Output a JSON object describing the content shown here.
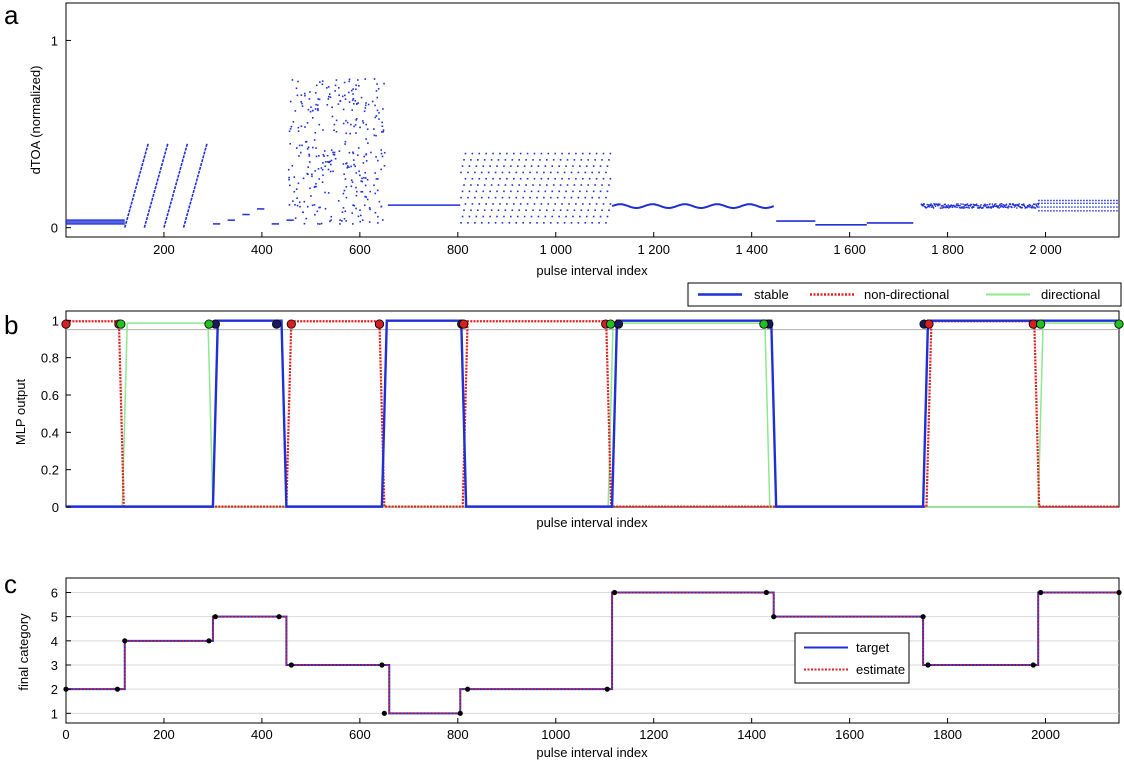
{
  "colors": {
    "blue": "#1f2fd6",
    "red": "#e02020",
    "green": "#8ee88e",
    "stable_dot": "#1a1a5a",
    "nondir_dot": "#d42020",
    "dir_dot": "#22c022",
    "grid": "#d9d9d9"
  },
  "chart_data": [
    {
      "panel": "a",
      "type": "scatter",
      "xlabel": "pulse interval index",
      "ylabel": "dTOA (normalized)",
      "xlim": [
        0,
        2150
      ],
      "ylim": [
        -0.05,
        1.2
      ],
      "xtick_values": [
        200,
        400,
        600,
        800,
        1000,
        1200,
        1400,
        1600,
        1800,
        2000
      ],
      "xtick_labels": [
        "200",
        "400",
        "600",
        "800",
        "1 000",
        "1 200",
        "1 400",
        "1 600",
        "1 800",
        "2 000"
      ],
      "ytick_values": [
        0,
        1
      ],
      "ytick_labels": [
        "0",
        "1"
      ],
      "segments": [
        {
          "kind": "lines",
          "x0": 0,
          "x1": 120,
          "levels": [
            0.02,
            0.03,
            0.04
          ]
        },
        {
          "kind": "ramps",
          "x_starts": [
            120,
            160,
            200,
            240
          ],
          "width": 48,
          "y0": 0.0,
          "y1": 0.45
        },
        {
          "kind": "dashes",
          "x0": 300,
          "x1": 455,
          "levels": [
            0.02,
            0.04,
            0.07,
            0.1
          ],
          "period": 30
        },
        {
          "kind": "scatter",
          "x0": 452,
          "x1": 650,
          "ymin": 0.02,
          "ymax": 0.8,
          "count": 330
        },
        {
          "kind": "lines",
          "x0": 657,
          "x1": 805,
          "levels": [
            0.12
          ]
        },
        {
          "kind": "dots",
          "x0": 805,
          "x1": 1115,
          "ymin": 0.03,
          "ymax": 0.4,
          "pattern": "zigzag"
        },
        {
          "kind": "wave",
          "x0": 1115,
          "x1": 1445,
          "center": 0.115,
          "amplitude": 0.01,
          "cycles": 5
        },
        {
          "kind": "steps",
          "x_bounds": [
            1450,
            1530,
            1635,
            1730
          ],
          "levels": [
            0.035,
            0.015,
            0.025
          ]
        },
        {
          "kind": "noise",
          "x0": 1745,
          "x1": 1985,
          "center": 0.12,
          "spread": 0.012
        },
        {
          "kind": "dotted-lines",
          "x0": 1985,
          "x1": 2150,
          "levels": [
            0.09,
            0.11,
            0.13,
            0.145
          ]
        }
      ]
    },
    {
      "panel": "b",
      "type": "line",
      "xlabel": "pulse interval index",
      "ylabel": "MLP output",
      "xlim": [
        0,
        2150
      ],
      "ylim": [
        0,
        1.05
      ],
      "ytick_values": [
        0,
        0.2,
        0.4,
        0.6,
        0.8,
        1
      ],
      "ytick_labels": [
        "0",
        "0.2",
        "0.4",
        "0.6",
        "0.8",
        "1"
      ],
      "threshold": 0.95,
      "legend": {
        "position": "top-right",
        "entries": [
          "stable",
          "non-directional",
          "directional"
        ]
      },
      "series": [
        {
          "name": "stable",
          "style": "solid",
          "high_intervals": [
            [
              305,
              445
            ],
            [
              650,
              812
            ],
            [
              1120,
              1445
            ],
            [
              1755,
              2150
            ]
          ]
        },
        {
          "name": "non-directional",
          "style": "dotted",
          "high_intervals": [
            [
              0,
              113
            ],
            [
              455,
              645
            ],
            [
              815,
              1108
            ],
            [
              1762,
              1982
            ]
          ]
        },
        {
          "name": "directional",
          "style": "solid-light",
          "high_intervals": [
            [
              120,
              295
            ],
            [
              1112,
              1432
            ],
            [
              1990,
              2150
            ]
          ]
        }
      ],
      "markers": {
        "stable": [
          305,
          430,
          640,
          808,
          1128,
          1435,
          1752
        ],
        "non-directional": [
          0,
          108,
          460,
          640,
          812,
          1102,
          1762,
          1975
        ],
        "directional": [
          112,
          292,
          1112,
          1425,
          1990,
          2150
        ]
      }
    },
    {
      "panel": "c",
      "type": "line",
      "xlabel": "pulse interval index",
      "ylabel": "final category",
      "xlim": [
        0,
        2150
      ],
      "ylim": [
        0.6,
        6.6
      ],
      "xtick_values": [
        0,
        200,
        400,
        600,
        800,
        1000,
        1200,
        1400,
        1600,
        1800,
        2000
      ],
      "xtick_labels": [
        "0",
        "200",
        "400",
        "600",
        "800",
        "1000",
        "1200",
        "1400",
        "1600",
        "1800",
        "2000"
      ],
      "ytick_values": [
        1,
        2,
        3,
        4,
        5,
        6
      ],
      "ytick_labels": [
        "1",
        "2",
        "3",
        "4",
        "5",
        "6"
      ],
      "legend": {
        "position": "right",
        "entries": [
          "target",
          "estimate"
        ]
      },
      "series": [
        {
          "name": "target",
          "steps": [
            [
              0,
              2
            ],
            [
              120,
              4
            ],
            [
              300,
              5
            ],
            [
              450,
              3
            ],
            [
              660,
              1
            ],
            [
              805,
              2
            ],
            [
              1115,
              6
            ],
            [
              1445,
              5
            ],
            [
              1750,
              3
            ],
            [
              1985,
              6
            ],
            [
              2150,
              6
            ]
          ]
        },
        {
          "name": "estimate",
          "steps": [
            [
              0,
              2
            ],
            [
              120,
              4
            ],
            [
              300,
              5
            ],
            [
              450,
              3
            ],
            [
              660,
              1
            ],
            [
              805,
              2
            ],
            [
              1115,
              6
            ],
            [
              1445,
              5
            ],
            [
              1750,
              3
            ],
            [
              1985,
              6
            ],
            [
              2150,
              6
            ]
          ]
        }
      ],
      "markers": [
        [
          0,
          2
        ],
        [
          105,
          2
        ],
        [
          120,
          4
        ],
        [
          292,
          4
        ],
        [
          305,
          5
        ],
        [
          435,
          5
        ],
        [
          460,
          3
        ],
        [
          645,
          3
        ],
        [
          650,
          1
        ],
        [
          805,
          1
        ],
        [
          820,
          2
        ],
        [
          1105,
          2
        ],
        [
          1120,
          6
        ],
        [
          1430,
          6
        ],
        [
          1445,
          5
        ],
        [
          1750,
          5
        ],
        [
          1760,
          3
        ],
        [
          1975,
          3
        ],
        [
          1990,
          6
        ],
        [
          2150,
          6
        ]
      ]
    }
  ],
  "panels": {
    "a": {
      "letter": "a",
      "xlabel": "pulse interval index",
      "ylabel": "dTOA (normalized)"
    },
    "b": {
      "letter": "b",
      "xlabel": "pulse interval index",
      "ylabel": "MLP output"
    },
    "c": {
      "letter": "c",
      "xlabel": "pulse interval index",
      "ylabel": "final category"
    }
  },
  "legend_b": {
    "stable": "stable",
    "nondir": "non-directional",
    "dir": "directional"
  },
  "legend_c": {
    "target": "target",
    "estimate": "estimate"
  }
}
